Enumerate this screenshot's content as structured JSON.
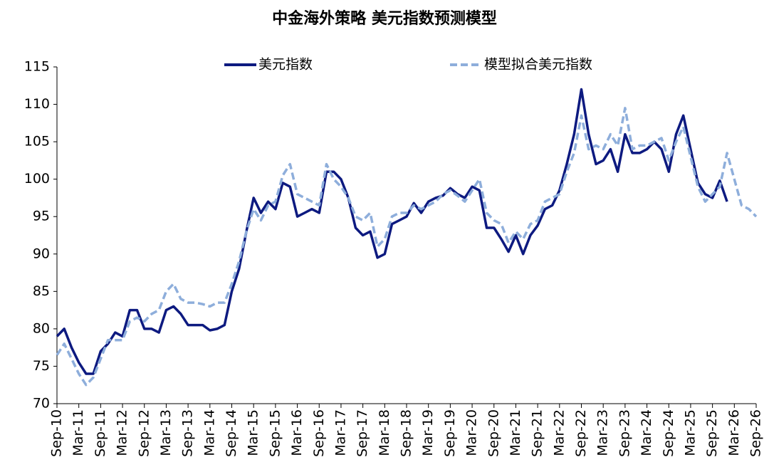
{
  "chart_data": {
    "type": "line",
    "title": "中金海外策略 美元指数预测模型",
    "categories": [
      "Sep-10",
      null,
      null,
      "Mar-11",
      null,
      null,
      "Sep-11",
      null,
      null,
      "Mar-12",
      null,
      null,
      "Sep-12",
      null,
      null,
      "Mar-13",
      null,
      null,
      "Sep-13",
      null,
      null,
      "Mar-14",
      null,
      null,
      "Sep-14",
      null,
      null,
      "Mar-15",
      null,
      null,
      "Sep-15",
      null,
      null,
      "Mar-16",
      null,
      null,
      "Sep-16",
      null,
      null,
      "Mar-17",
      null,
      null,
      "Sep-17",
      null,
      null,
      "Mar-18",
      null,
      null,
      "Sep-18",
      null,
      null,
      "Mar-19",
      null,
      null,
      "Sep-19",
      null,
      null,
      "Mar-20",
      null,
      null,
      "Sep-20",
      null,
      null,
      "Mar-21",
      null,
      null,
      "Sep-21",
      null,
      null,
      "Mar-22",
      null,
      null,
      "Sep-22",
      null,
      null,
      "Mar-23",
      null,
      null,
      "Sep-23",
      null,
      null,
      "Mar-24",
      null,
      null,
      "Sep-24",
      null,
      null,
      "Mar-25",
      null,
      null,
      "Sep-25",
      null,
      null,
      "Mar-26",
      null,
      null,
      "Sep-26"
    ],
    "series": [
      {
        "name": "美元指数",
        "color": "#0d1a80",
        "dashed": false,
        "values": [
          79,
          80,
          77.5,
          75.5,
          74,
          74,
          77,
          78,
          79.5,
          79,
          82.5,
          82.5,
          80,
          80,
          79.5,
          82.5,
          83,
          82,
          80.5,
          80.5,
          80.5,
          79.8,
          80,
          80.5,
          85,
          88,
          93,
          97.5,
          95.5,
          97,
          96,
          99.5,
          99,
          95,
          95.5,
          96,
          95.5,
          101,
          101,
          100,
          97.5,
          93.5,
          92.5,
          93,
          89.5,
          90,
          94,
          94.5,
          95,
          96.8,
          95.5,
          97,
          97.5,
          97.8,
          98.8,
          98,
          97.5,
          99,
          98.5,
          93.5,
          93.5,
          92,
          90.3,
          92.5,
          90,
          92.5,
          93.8,
          96,
          96.5,
          98.5,
          102,
          106,
          112,
          106,
          102,
          102.5,
          104,
          101,
          106,
          103.5,
          103.5,
          104,
          105,
          104,
          101,
          106,
          108.5,
          104,
          99.5,
          98,
          97.5,
          99.8,
          97,
          null,
          null,
          null,
          null
        ]
      },
      {
        "name": "模型拟合美元指数",
        "color": "#8eaedb",
        "dashed": true,
        "values": [
          76.5,
          78,
          76,
          74,
          72.5,
          73.5,
          76,
          78.5,
          78.5,
          78.5,
          81,
          81.5,
          81,
          82,
          82.5,
          85,
          86,
          84,
          83.5,
          83.5,
          83.3,
          83,
          83.5,
          83.5,
          86,
          89,
          93,
          96,
          94.5,
          96.5,
          97,
          100.5,
          102,
          98,
          97.5,
          97,
          96.5,
          102,
          100,
          99,
          97.5,
          95,
          94.5,
          95.5,
          91,
          92,
          95,
          95.5,
          95.5,
          96.5,
          96,
          96.5,
          97,
          98,
          98.5,
          97.8,
          97,
          98.5,
          100,
          95.5,
          94.5,
          94,
          91.5,
          93,
          92,
          94,
          94.5,
          97,
          97.5,
          98,
          101,
          103.5,
          108.5,
          104,
          104.5,
          104,
          106,
          104.5,
          109.5,
          104,
          104.5,
          104.5,
          105,
          105.5,
          102.5,
          105,
          107,
          103,
          99,
          97,
          98,
          99,
          103.5,
          100,
          96.5,
          96,
          95
        ]
      }
    ],
    "ylim": [
      70,
      115
    ],
    "yticks": [
      70,
      75,
      80,
      85,
      90,
      95,
      100,
      105,
      110,
      115
    ],
    "grid": false
  }
}
